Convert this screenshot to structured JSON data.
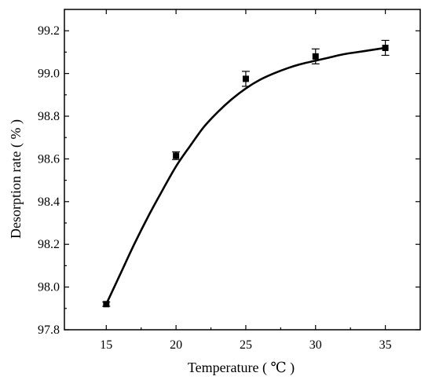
{
  "chart_data": {
    "type": "scatter",
    "xlabel": "Temperature ( ℃ )",
    "ylabel": "Desorption rate ( % )",
    "xlim": [
      12,
      37.5
    ],
    "ylim": [
      97.8,
      99.3
    ],
    "x_ticks": [
      "15",
      "20",
      "25",
      "30",
      "35"
    ],
    "y_ticks": [
      "97.8",
      "98.0",
      "98.2",
      "98.4",
      "98.6",
      "98.8",
      "99.0",
      "99.2"
    ],
    "series": [
      {
        "x": [
          15,
          20,
          25,
          30,
          35
        ],
        "y": [
          97.92,
          98.615,
          98.975,
          99.08,
          99.12
        ],
        "error": [
          0.01,
          0.018,
          0.035,
          0.035,
          0.035
        ],
        "marker": "square",
        "color": "#000000"
      }
    ],
    "fit_curve": {
      "x": [
        15,
        16,
        17,
        18,
        19,
        20,
        21,
        22,
        23,
        24,
        25,
        26,
        27,
        28,
        29,
        30,
        31,
        32,
        33,
        34,
        35
      ],
      "y": [
        97.92,
        98.06,
        98.2,
        98.33,
        98.45,
        98.565,
        98.66,
        98.75,
        98.82,
        98.88,
        98.93,
        98.97,
        99.0,
        99.025,
        99.045,
        99.06,
        99.075,
        99.09,
        99.1,
        99.11,
        99.12
      ],
      "color": "#000000"
    },
    "grid": false,
    "legend": "none"
  }
}
